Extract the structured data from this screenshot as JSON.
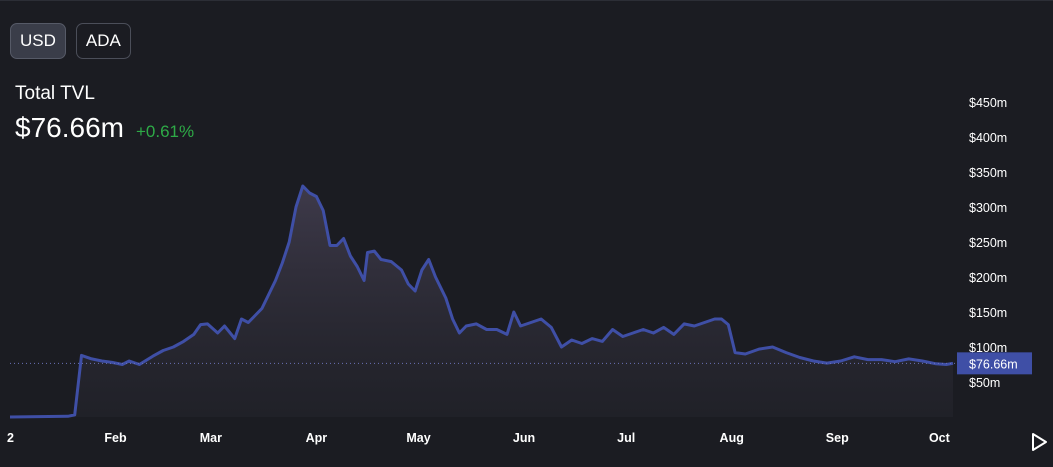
{
  "currency_toggle": {
    "options": [
      "USD",
      "ADA"
    ],
    "selected": "USD"
  },
  "summary": {
    "label": "Total TVL",
    "value": "$76.66m",
    "change": "+0.61%"
  },
  "colors": {
    "line": "#3f4fa6",
    "background": "#1b1c22",
    "positive": "#2eaa47",
    "badge": "#3f4fa6"
  },
  "icons": {
    "play": "play-icon"
  },
  "chart_data": {
    "type": "area",
    "title": "",
    "xlabel": "",
    "ylabel": "",
    "ylim": [
      0,
      500
    ],
    "y_ticks": [
      {
        "value": 50,
        "label": "$50m"
      },
      {
        "value": 100,
        "label": "$100m"
      },
      {
        "value": 150,
        "label": "$150m"
      },
      {
        "value": 200,
        "label": "$200m"
      },
      {
        "value": 250,
        "label": "$250m"
      },
      {
        "value": 300,
        "label": "$300m"
      },
      {
        "value": 350,
        "label": "$350m"
      },
      {
        "value": 400,
        "label": "$400m"
      },
      {
        "value": 450,
        "label": "$450m"
      }
    ],
    "x_range": [
      "2023-01-01",
      "2023-10-05"
    ],
    "x_ticks": [
      {
        "date": "2023-01-01",
        "label": "2"
      },
      {
        "date": "2023-02-01",
        "label": "Feb"
      },
      {
        "date": "2023-03-01",
        "label": "Mar"
      },
      {
        "date": "2023-04-01",
        "label": "Apr"
      },
      {
        "date": "2023-05-01",
        "label": "May"
      },
      {
        "date": "2023-06-01",
        "label": "Jun"
      },
      {
        "date": "2023-07-01",
        "label": "Jul"
      },
      {
        "date": "2023-08-01",
        "label": "Aug"
      },
      {
        "date": "2023-09-01",
        "label": "Sep"
      },
      {
        "date": "2023-10-01",
        "label": "Oct"
      }
    ],
    "current": {
      "value": 76.66,
      "label": "$76.66m"
    },
    "series": [
      {
        "points": [
          [
            "2023-01-01",
            0
          ],
          [
            "2023-01-18",
            1
          ],
          [
            "2023-01-20",
            3
          ],
          [
            "2023-01-22",
            88
          ],
          [
            "2023-01-25",
            83
          ],
          [
            "2023-01-28",
            80
          ],
          [
            "2023-01-31",
            78
          ],
          [
            "2023-02-03",
            75
          ],
          [
            "2023-02-05",
            80
          ],
          [
            "2023-02-08",
            75
          ],
          [
            "2023-02-12",
            87
          ],
          [
            "2023-02-15",
            95
          ],
          [
            "2023-02-18",
            100
          ],
          [
            "2023-02-21",
            108
          ],
          [
            "2023-02-24",
            118
          ],
          [
            "2023-02-26",
            132
          ],
          [
            "2023-02-28",
            133
          ],
          [
            "2023-03-03",
            120
          ],
          [
            "2023-03-05",
            130
          ],
          [
            "2023-03-08",
            112
          ],
          [
            "2023-03-10",
            140
          ],
          [
            "2023-03-12",
            135
          ],
          [
            "2023-03-14",
            145
          ],
          [
            "2023-03-16",
            155
          ],
          [
            "2023-03-18",
            175
          ],
          [
            "2023-03-20",
            195
          ],
          [
            "2023-03-22",
            220
          ],
          [
            "2023-03-24",
            250
          ],
          [
            "2023-03-26",
            300
          ],
          [
            "2023-03-28",
            330
          ],
          [
            "2023-03-30",
            320
          ],
          [
            "2023-04-01",
            315
          ],
          [
            "2023-04-03",
            295
          ],
          [
            "2023-04-05",
            245
          ],
          [
            "2023-04-07",
            245
          ],
          [
            "2023-04-09",
            255
          ],
          [
            "2023-04-11",
            230
          ],
          [
            "2023-04-13",
            215
          ],
          [
            "2023-04-15",
            195
          ],
          [
            "2023-04-16",
            235
          ],
          [
            "2023-04-18",
            237
          ],
          [
            "2023-04-20",
            225
          ],
          [
            "2023-04-23",
            222
          ],
          [
            "2023-04-26",
            210
          ],
          [
            "2023-04-28",
            190
          ],
          [
            "2023-04-30",
            180
          ],
          [
            "2023-05-02",
            210
          ],
          [
            "2023-05-04",
            225
          ],
          [
            "2023-05-06",
            200
          ],
          [
            "2023-05-09",
            170
          ],
          [
            "2023-05-11",
            140
          ],
          [
            "2023-05-13",
            120
          ],
          [
            "2023-05-15",
            130
          ],
          [
            "2023-05-18",
            133
          ],
          [
            "2023-05-21",
            125
          ],
          [
            "2023-05-24",
            125
          ],
          [
            "2023-05-27",
            118
          ],
          [
            "2023-05-29",
            150
          ],
          [
            "2023-05-31",
            130
          ],
          [
            "2023-06-03",
            135
          ],
          [
            "2023-06-06",
            140
          ],
          [
            "2023-06-09",
            128
          ],
          [
            "2023-06-12",
            100
          ],
          [
            "2023-06-15",
            110
          ],
          [
            "2023-06-18",
            105
          ],
          [
            "2023-06-21",
            112
          ],
          [
            "2023-06-24",
            108
          ],
          [
            "2023-06-27",
            125
          ],
          [
            "2023-06-30",
            115
          ],
          [
            "2023-07-03",
            120
          ],
          [
            "2023-07-06",
            125
          ],
          [
            "2023-07-09",
            120
          ],
          [
            "2023-07-12",
            128
          ],
          [
            "2023-07-15",
            118
          ],
          [
            "2023-07-18",
            133
          ],
          [
            "2023-07-21",
            130
          ],
          [
            "2023-07-24",
            135
          ],
          [
            "2023-07-27",
            140
          ],
          [
            "2023-07-29",
            140
          ],
          [
            "2023-07-31",
            132
          ],
          [
            "2023-08-02",
            92
          ],
          [
            "2023-08-05",
            90
          ],
          [
            "2023-08-09",
            97
          ],
          [
            "2023-08-13",
            100
          ],
          [
            "2023-08-17",
            92
          ],
          [
            "2023-08-21",
            85
          ],
          [
            "2023-08-25",
            80
          ],
          [
            "2023-08-29",
            77
          ],
          [
            "2023-09-02",
            80
          ],
          [
            "2023-09-06",
            86
          ],
          [
            "2023-09-10",
            82
          ],
          [
            "2023-09-14",
            82
          ],
          [
            "2023-09-18",
            79
          ],
          [
            "2023-09-22",
            83
          ],
          [
            "2023-09-26",
            80
          ],
          [
            "2023-09-30",
            76
          ],
          [
            "2023-10-03",
            75
          ],
          [
            "2023-10-05",
            76.66
          ]
        ]
      }
    ]
  }
}
